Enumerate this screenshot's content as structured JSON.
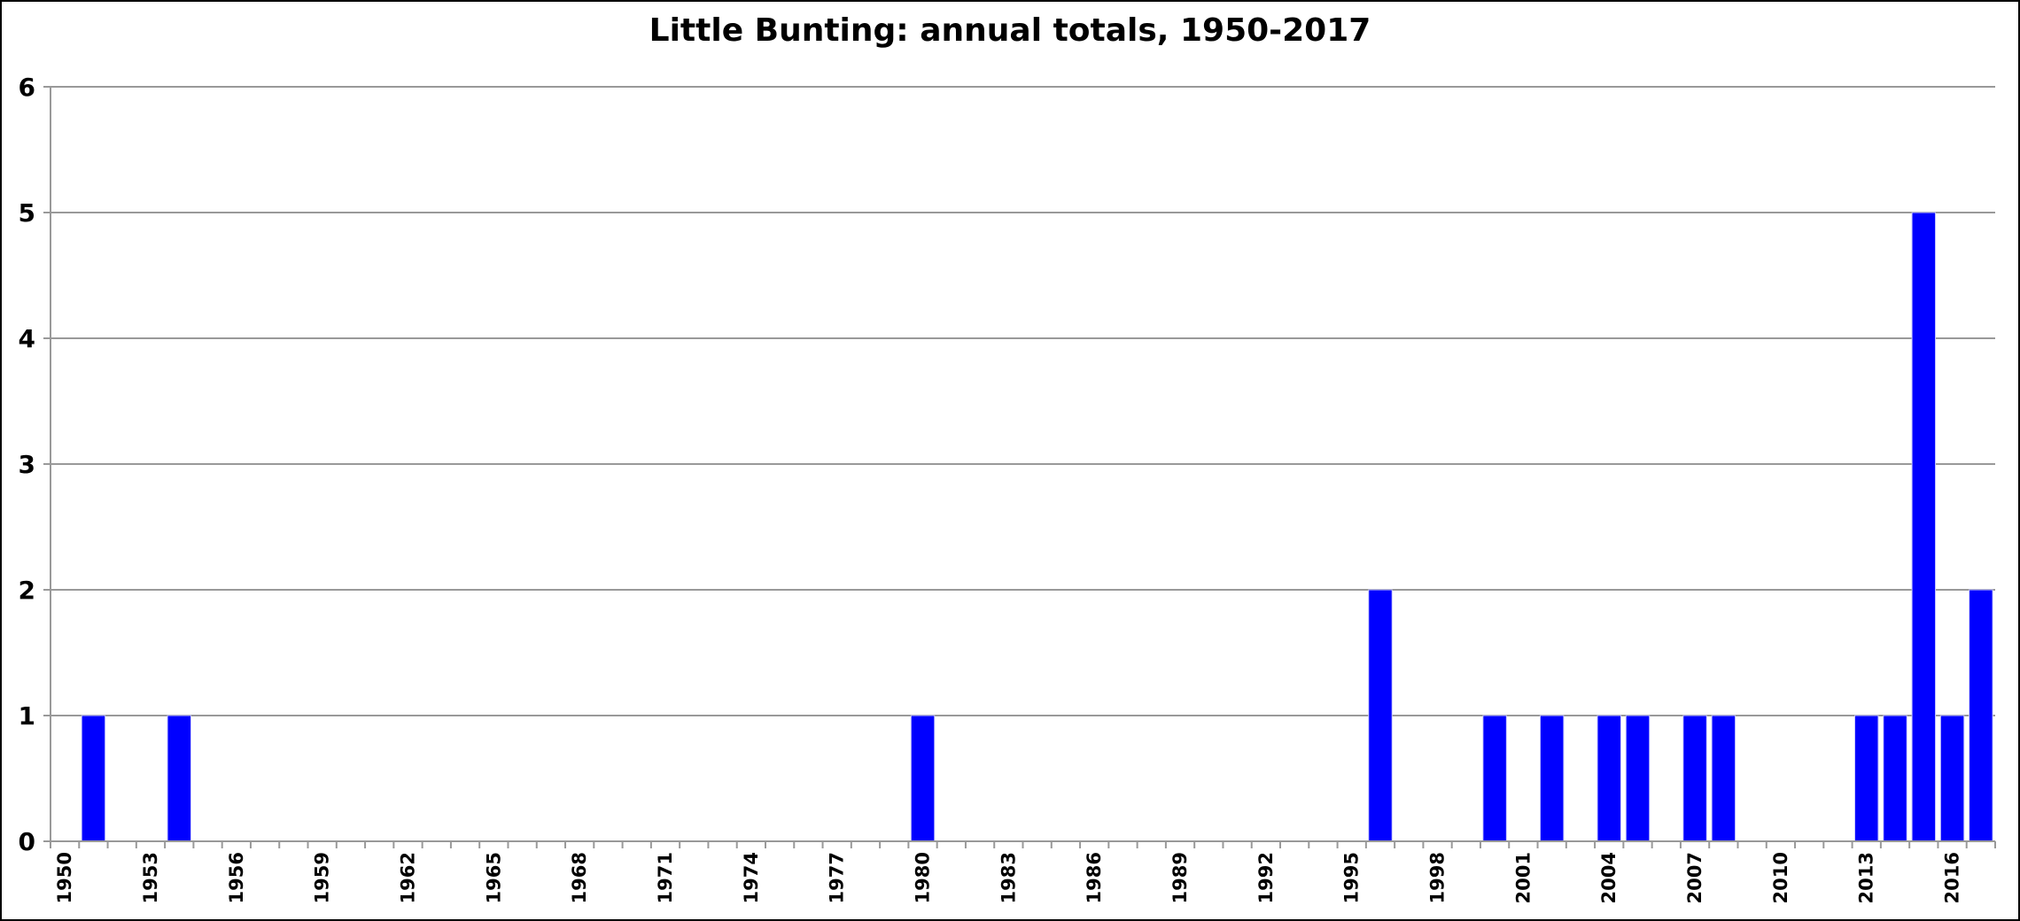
{
  "chart_data": {
    "type": "bar",
    "title": "Little Bunting: annual totals, 1950-2017",
    "xlabel": "",
    "ylabel": "",
    "ylim": [
      0,
      6
    ],
    "yticks": [
      0,
      1,
      2,
      3,
      4,
      5,
      6
    ],
    "grid": true,
    "legend": "none",
    "bar_color": "#0000ff",
    "grid_color": "#999999",
    "x_start": 1950,
    "x_end": 2017,
    "x_label_step": 3,
    "values_by_year": {
      "1951": 1,
      "1954": 1,
      "1980": 1,
      "1996": 2,
      "2000": 1,
      "2002": 1,
      "2004": 1,
      "2005": 1,
      "2007": 1,
      "2008": 1,
      "2013": 1,
      "2014": 1,
      "2015": 5,
      "2016": 1,
      "2017": 2
    }
  }
}
